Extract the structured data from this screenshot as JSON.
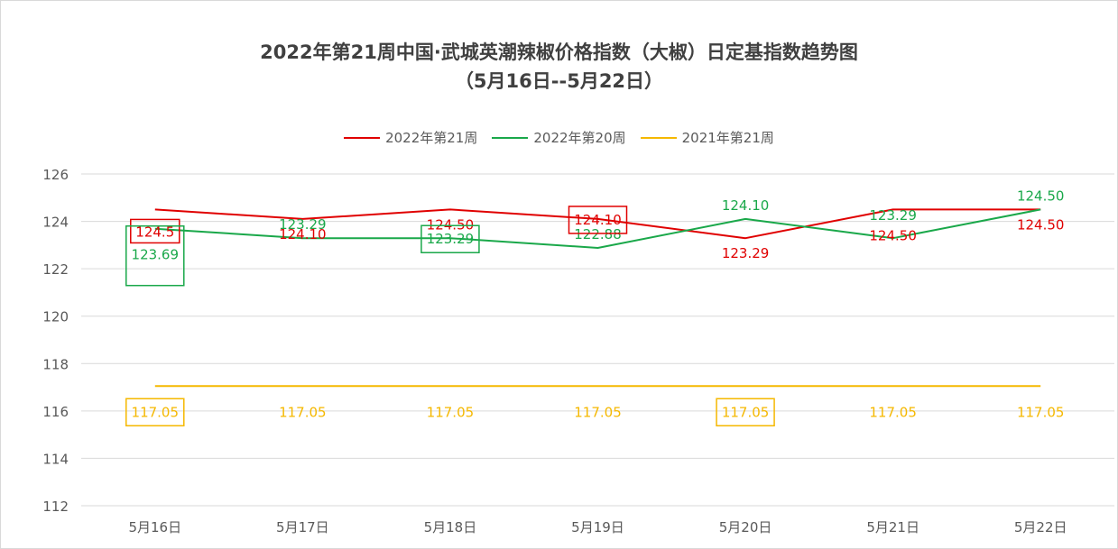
{
  "chart_data": {
    "type": "line",
    "title_line1": "2022年第21周中国·武城英潮辣椒价格指数（大椒）日定基指数趋势图",
    "title_line2": "（5月16日--5月22日）",
    "categories": [
      "5月16日",
      "5月17日",
      "5月18日",
      "5月19日",
      "5月20日",
      "5月21日",
      "5月22日"
    ],
    "y_ticks": [
      "112",
      "114",
      "116",
      "118",
      "120",
      "122",
      "124",
      "126"
    ],
    "ylim": [
      112,
      126
    ],
    "grid": true,
    "legend_position": "top",
    "series": [
      {
        "name": "2022年第21周",
        "color": "#e00000",
        "values": [
          124.5,
          124.1,
          124.5,
          124.1,
          123.29,
          124.5,
          124.5
        ],
        "labels": [
          "124.5",
          "124.10",
          "124.50",
          "124.10",
          "123.29",
          "124.50",
          "124.50"
        ]
      },
      {
        "name": "2022年第20周",
        "color": "#1aa84a",
        "values": [
          123.69,
          123.29,
          123.29,
          122.88,
          124.1,
          123.29,
          124.5
        ],
        "labels": [
          "123.69",
          "123.29",
          "123.29",
          "122.88",
          "124.10",
          "123.29",
          "124.50"
        ]
      },
      {
        "name": "2021年第21周",
        "color": "#f5b800",
        "values": [
          117.05,
          117.05,
          117.05,
          117.05,
          117.05,
          117.05,
          117.05
        ],
        "labels": [
          "117.05",
          "117.05",
          "117.05",
          "117.05",
          "117.05",
          "117.05",
          "117.05"
        ]
      }
    ]
  }
}
